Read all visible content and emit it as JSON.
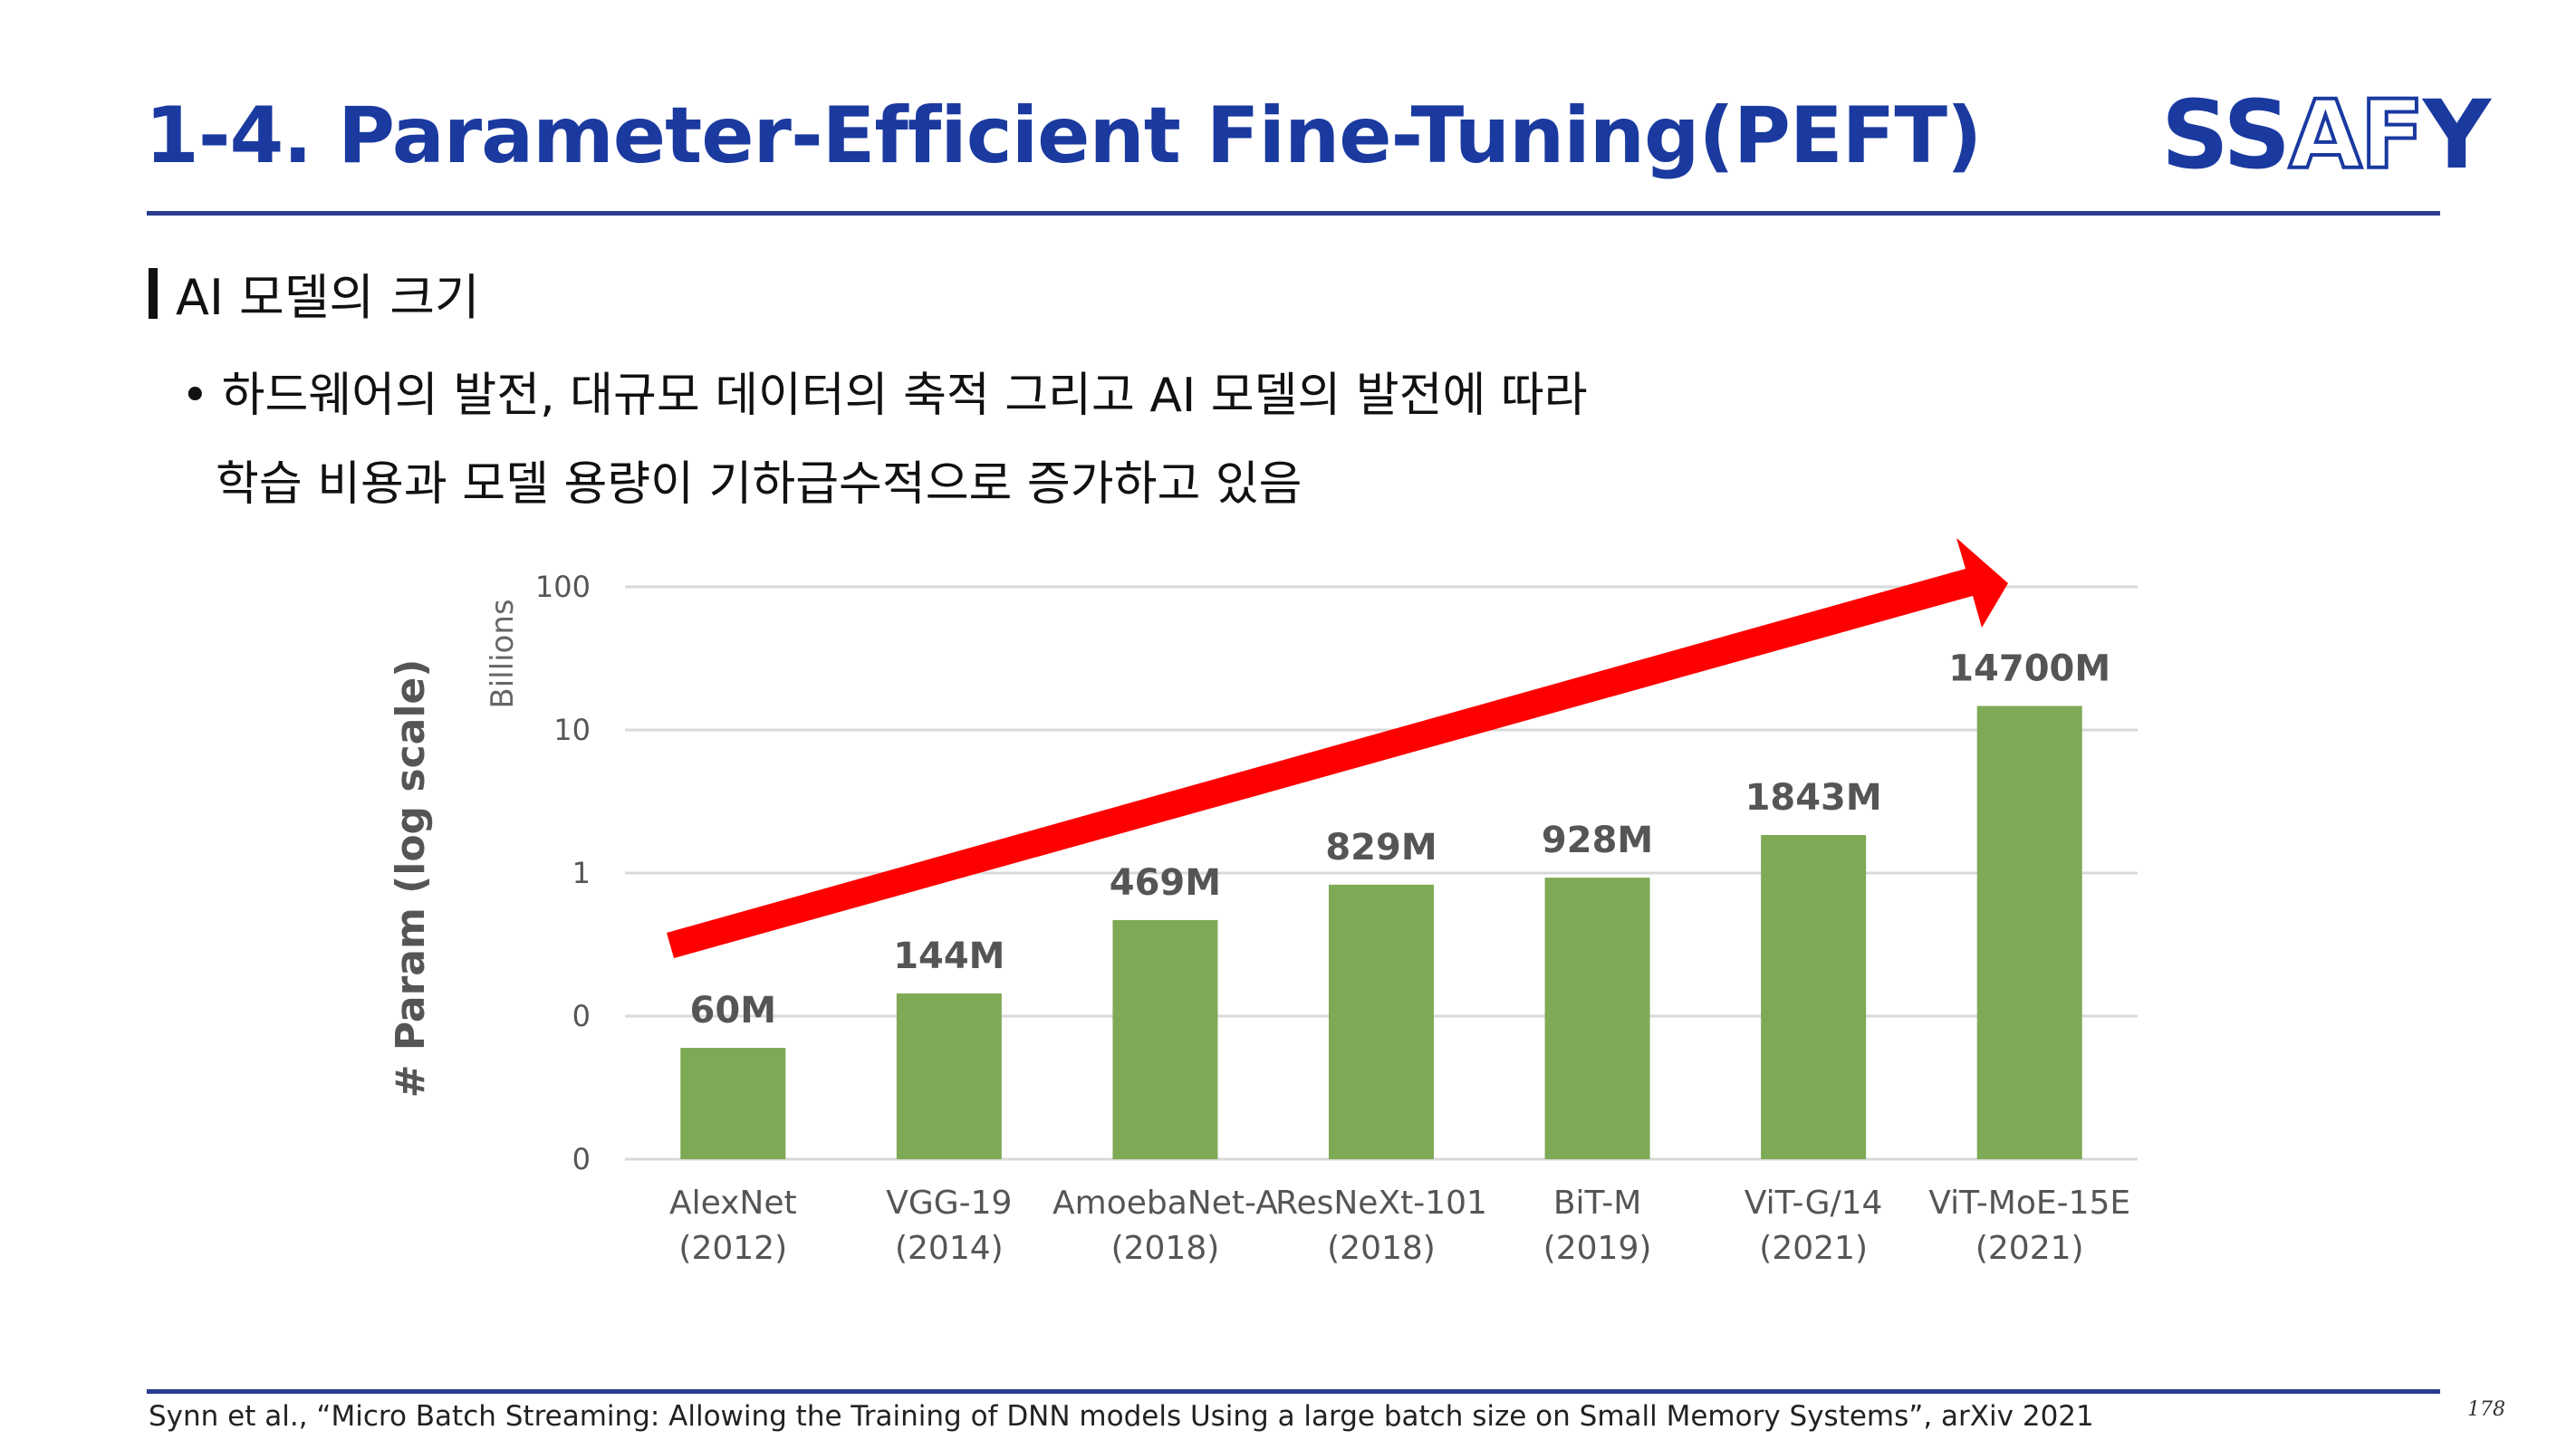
{
  "slide": {
    "title": "1-4. Parameter-Efficient Fine-Tuning(PEFT)",
    "logo": {
      "part1": "SS",
      "part2": "AF",
      "part3": "Y"
    },
    "section": "AI 모델의 크기",
    "bullet_line1": "하드웨어의 발전, 대규모 데이터의 축적 그리고 AI 모델의 발전에 따라",
    "bullet_line2": "학습 비용과 모델 용량이 기하급수적으로 증가하고 있음",
    "footnote": "Synn et al., “Micro Batch Streaming: Allowing the Training of DNN models Using a large batch size on Small Memory Systems”, arXiv 2021",
    "page_number": "178"
  },
  "colors": {
    "accent": "#1a3aa0",
    "bar": "#7ea955",
    "arrow": "#ff0000",
    "grid": "#d9d9d9"
  },
  "chart_data": {
    "type": "bar",
    "ylabel": "# Param (log scale)",
    "yunits": "Billions",
    "yscale": "log",
    "yticks": [
      {
        "value": 0.01,
        "label": "0"
      },
      {
        "value": 0.1,
        "label": "0"
      },
      {
        "value": 1,
        "label": "1"
      },
      {
        "value": 10,
        "label": "10"
      },
      {
        "value": 100,
        "label": "100"
      }
    ],
    "ylim": [
      0.01,
      100
    ],
    "grid": true,
    "categories": [
      {
        "name": "AlexNet",
        "year": "(2012)"
      },
      {
        "name": "VGG-19",
        "year": "(2014)"
      },
      {
        "name": "AmoebaNet-A",
        "year": "(2018)"
      },
      {
        "name": "ResNeXt-101",
        "year": "(2018)"
      },
      {
        "name": "BiT-M",
        "year": "(2019)"
      },
      {
        "name": "ViT-G/14",
        "year": "(2021)"
      },
      {
        "name": "ViT-MoE-15E",
        "year": "(2021)"
      }
    ],
    "values": [
      0.06,
      0.144,
      0.469,
      0.829,
      0.928,
      1.843,
      14.7
    ],
    "data_labels": [
      "60M",
      "144M",
      "469M",
      "829M",
      "928M",
      "1843M",
      "14700M"
    ],
    "annotation": "red trend arrow rising from AlexNet to ViT-MoE-15E"
  }
}
